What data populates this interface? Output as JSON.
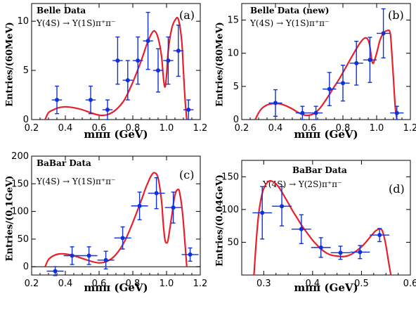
{
  "chart_data": [
    {
      "type": "scatter",
      "panel_label": "(a)",
      "title": "Belle Data",
      "process": "Υ(4S) → Υ(1S)π⁺π⁻",
      "ylabel": "Entries/(60MeV)",
      "xlabel": "mππ (GeV)",
      "xlim": [
        0.2,
        1.2
      ],
      "ylim": [
        0,
        11.8
      ],
      "xticks": [
        "0.2",
        "0.4",
        "0.6",
        "0.8",
        "1.0",
        "1.2"
      ],
      "yticks": [
        "0",
        "5",
        "10"
      ],
      "data": {
        "x": [
          0.35,
          0.55,
          0.65,
          0.71,
          0.77,
          0.83,
          0.89,
          0.95,
          1.01,
          1.07,
          1.13
        ],
        "y": [
          2,
          2,
          1,
          6,
          4,
          6,
          8,
          5,
          6,
          7,
          1
        ],
        "yerr": [
          1.4,
          1.4,
          1.0,
          2.4,
          2.0,
          2.4,
          2.9,
          2.2,
          2.4,
          2.6,
          1.0
        ],
        "xerr": 0.03
      },
      "curve": {
        "x": [
          0.28,
          0.3,
          0.33,
          0.36,
          0.4,
          0.45,
          0.5,
          0.55,
          0.6,
          0.65,
          0.7,
          0.75,
          0.8,
          0.85,
          0.88,
          0.91,
          0.93,
          0.95,
          0.97,
          0.98,
          0.99,
          1.0,
          1.01,
          1.03,
          1.05,
          1.07,
          1.09,
          1.1,
          1.11,
          1.12
        ],
        "y": [
          0.0,
          0.7,
          1.0,
          1.2,
          1.3,
          1.2,
          1.0,
          0.7,
          0.45,
          0.5,
          1.0,
          2.0,
          3.8,
          6.0,
          7.5,
          8.7,
          9.0,
          8.3,
          6.5,
          4.5,
          3.3,
          4.5,
          7.0,
          9.2,
          10.1,
          10.2,
          8.0,
          5.0,
          2.0,
          0.0
        ]
      }
    },
    {
      "type": "scatter",
      "panel_label": "(b)",
      "title": "Belle Data (new)",
      "process": "Υ(4S) → Υ(1S)π⁺π⁻",
      "ylabel": "Entries/(80MeV)",
      "xlabel": "mππ (GeV)",
      "xlim": [
        0.2,
        1.2
      ],
      "ylim": [
        0,
        17.5
      ],
      "xticks": [
        "0.2",
        "0.4",
        "0.6",
        "0.8",
        "1.0",
        "1.2"
      ],
      "yticks": [
        "0",
        "5",
        "10",
        "15"
      ],
      "data": {
        "x": [
          0.4,
          0.56,
          0.64,
          0.72,
          0.8,
          0.88,
          0.96,
          1.04,
          1.12
        ],
        "y": [
          2.5,
          1,
          1,
          4.6,
          5.5,
          8.5,
          9,
          13,
          1
        ],
        "yerr": [
          2.0,
          1.0,
          1.0,
          2.5,
          2.7,
          3.3,
          3.4,
          3.7,
          1.0
        ],
        "xerr": 0.04
      },
      "curve": {
        "x": [
          0.28,
          0.3,
          0.32,
          0.35,
          0.38,
          0.42,
          0.46,
          0.5,
          0.54,
          0.58,
          0.62,
          0.66,
          0.7,
          0.74,
          0.78,
          0.82,
          0.86,
          0.9,
          0.93,
          0.95,
          0.96,
          0.97,
          0.98,
          1.0,
          1.02,
          1.04,
          1.06,
          1.08,
          1.09,
          1.1,
          1.11,
          1.12
        ],
        "y": [
          0.0,
          1.0,
          1.7,
          2.2,
          2.4,
          2.4,
          2.1,
          1.6,
          1.0,
          0.65,
          0.8,
          1.6,
          3.0,
          4.6,
          6.2,
          8.0,
          9.8,
          11.5,
          12.3,
          12.0,
          11.0,
          9.2,
          8.5,
          10.0,
          12.0,
          13.0,
          13.4,
          13.1,
          10.0,
          6.0,
          2.0,
          0.0
        ]
      }
    },
    {
      "type": "scatter",
      "panel_label": "(c)",
      "title": "BaBar Data",
      "process": "Υ(4S) → Υ(1S)π⁺π⁻",
      "ylabel": "Entries/(0.1GeV)",
      "xlabel": "mππ (GeV)",
      "xlim": [
        0.2,
        1.2
      ],
      "ylim": [
        -15,
        200
      ],
      "xticks": [
        "0.2",
        "0.4",
        "0.6",
        "0.8",
        "1.0",
        "1.2"
      ],
      "yticks": [
        "0",
        "50",
        "100",
        "150",
        "200"
      ],
      "data": {
        "x": [
          0.34,
          0.44,
          0.54,
          0.64,
          0.74,
          0.84,
          0.94,
          1.04,
          1.14
        ],
        "y": [
          -8,
          20,
          20,
          12,
          52,
          110,
          133,
          107,
          22
        ],
        "yerr": [
          8,
          16,
          16,
          16,
          20,
          25,
          28,
          28,
          12
        ],
        "xerr": 0.05
      },
      "curve": {
        "x": [
          0.28,
          0.3,
          0.33,
          0.36,
          0.4,
          0.45,
          0.5,
          0.55,
          0.6,
          0.65,
          0.7,
          0.75,
          0.8,
          0.85,
          0.88,
          0.91,
          0.93,
          0.95,
          0.97,
          0.98,
          0.99,
          1.0,
          1.01,
          1.03,
          1.05,
          1.07,
          1.08,
          1.09,
          1.1,
          1.11,
          1.12
        ],
        "y": [
          0,
          13,
          20,
          23,
          23,
          20,
          15,
          10,
          7,
          10,
          22,
          45,
          80,
          120,
          145,
          165,
          170,
          160,
          120,
          80,
          50,
          43,
          50,
          90,
          130,
          140,
          130,
          110,
          80,
          40,
          0
        ]
      },
      "zero_line": true
    },
    {
      "type": "scatter",
      "panel_label": "(d)",
      "title": "BaBar Data",
      "process": "Υ(4S) → Υ(2S)π⁺π⁻",
      "ylabel": "Entries/(0.04GeV)",
      "xlabel": "mππ (GeV)",
      "xlim": [
        0.255,
        0.6
      ],
      "ylim": [
        0,
        175
      ],
      "xticks": [
        "0.3",
        "0.4",
        "0.5",
        "0.6"
      ],
      "yticks": [
        "50",
        "100",
        "150"
      ],
      "data": {
        "x": [
          0.297,
          0.337,
          0.377,
          0.417,
          0.457,
          0.497,
          0.537
        ],
        "y": [
          95,
          105,
          70,
          42,
          34,
          35,
          61
        ],
        "yerr": [
          40,
          30,
          22,
          15,
          10,
          10,
          10
        ],
        "xerr": 0.02
      },
      "curve": {
        "x": [
          0.28,
          0.285,
          0.29,
          0.295,
          0.3,
          0.31,
          0.32,
          0.33,
          0.34,
          0.35,
          0.36,
          0.37,
          0.38,
          0.39,
          0.4,
          0.41,
          0.42,
          0.43,
          0.44,
          0.45,
          0.46,
          0.47,
          0.48,
          0.49,
          0.5,
          0.51,
          0.52,
          0.53,
          0.54,
          0.545,
          0.55,
          0.555,
          0.56
        ],
        "y": [
          0,
          55,
          95,
          118,
          132,
          143,
          142,
          135,
          123,
          110,
          97,
          85,
          73,
          63,
          53,
          45,
          38,
          33,
          30,
          29,
          28,
          29,
          32,
          37,
          43,
          51,
          60,
          68,
          70,
          62,
          45,
          22,
          0
        ]
      }
    }
  ]
}
